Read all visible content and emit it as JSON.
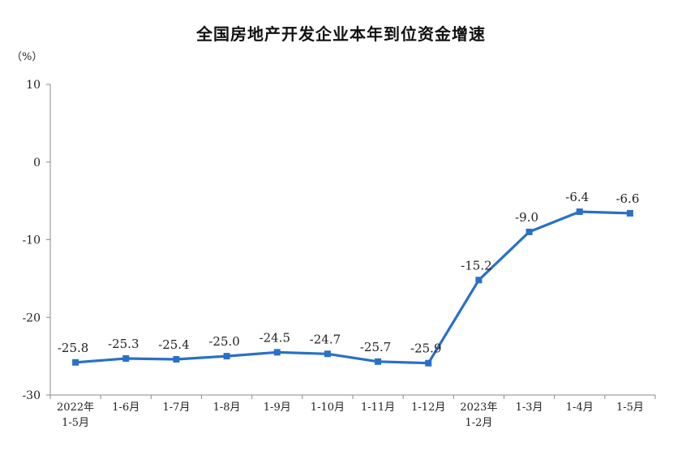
{
  "chart_data": {
    "type": "line",
    "title": "全国房地产开发企业本年到位资金增速",
    "ylabel": "（%）",
    "xlabel": "",
    "ylim": [
      -30,
      10
    ],
    "yticks": [
      "10",
      "0",
      "-10",
      "-20",
      "-30"
    ],
    "categories": [
      [
        "2022年",
        "1-5月"
      ],
      [
        "1-6月"
      ],
      [
        "1-7月"
      ],
      [
        "1-8月"
      ],
      [
        "1-9月"
      ],
      [
        "1-10月"
      ],
      [
        "1-11月"
      ],
      [
        "1-12月"
      ],
      [
        "2023年",
        "1-2月"
      ],
      [
        "1-3月"
      ],
      [
        "1-4月"
      ],
      [
        "1-5月"
      ]
    ],
    "values": [
      -25.8,
      -25.3,
      -25.4,
      -25.0,
      -24.5,
      -24.7,
      -25.7,
      -25.9,
      -15.2,
      -9.0,
      -6.4,
      -6.6
    ],
    "data_labels": [
      "-25.8",
      "-25.3",
      "-25.4",
      "-25.0",
      "-24.5",
      "-24.7",
      "-25.7",
      "-25.9",
      "-15.2",
      "-9.0",
      "-6.4",
      "-6.6"
    ],
    "grid": false,
    "colors": {
      "line": "#2970c8",
      "axis": "#8a8a8a"
    }
  }
}
